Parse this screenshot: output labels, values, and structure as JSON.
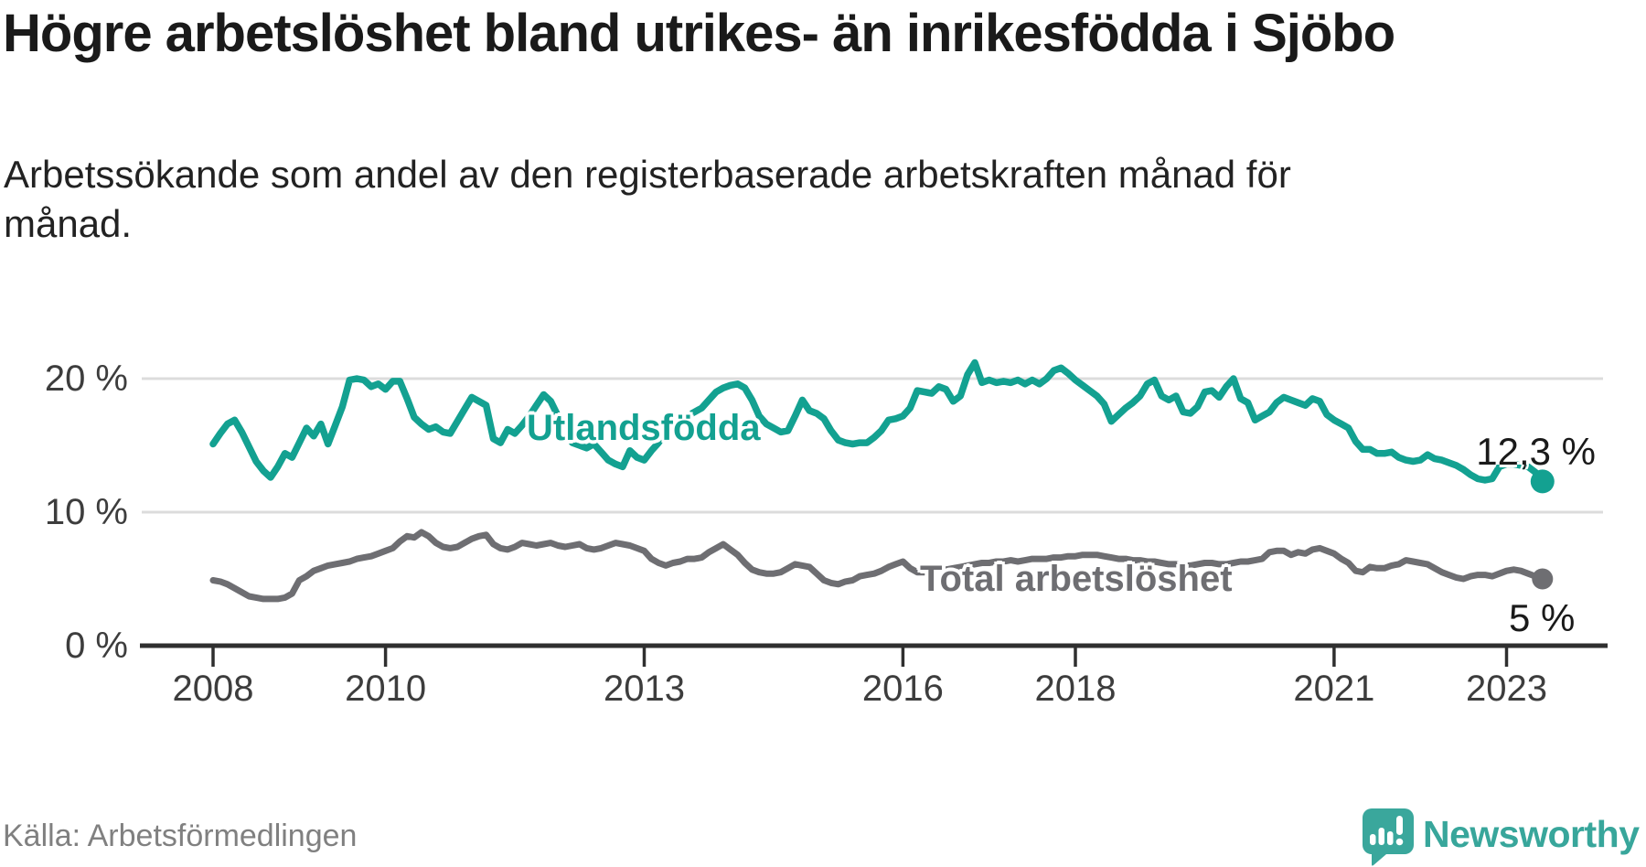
{
  "header": {
    "title": "Högre arbetslöshet bland utrikes- än inrikesfödda i Sjöbo",
    "subtitle": "Arbetssökande som andel av den registerbaserade arbetskraften månad för månad."
  },
  "chart_data": {
    "type": "line",
    "title": "Högre arbetslöshet bland utrikes- än inrikesfödda i Sjöbo",
    "subtitle": "Arbetssökande som andel av den registerbaserade arbetskraften månad för månad.",
    "x_start": "2008-01",
    "x_interval": "month",
    "x_tick_labels": [
      "2008",
      "2010",
      "2013",
      "2016",
      "2018",
      "2021",
      "2023"
    ],
    "y_axis": {
      "ticks": [
        20,
        10,
        0
      ],
      "tick_labels": [
        "20 %",
        "10 %",
        "0 %"
      ],
      "range": [
        0,
        22
      ],
      "unit": "%"
    },
    "grid": "horizontal",
    "legend_position": "inline-labels",
    "series": [
      {
        "name": "Utlandsfödda",
        "color": "#13a191",
        "end_label": "12,3 %",
        "end_value": 12.3,
        "values": [
          15.1,
          15.9,
          16.6,
          16.9,
          16.0,
          14.9,
          13.8,
          13.1,
          12.6,
          13.4,
          14.4,
          14.1,
          15.2,
          16.3,
          15.7,
          16.6,
          15.1,
          16.5,
          17.9,
          19.9,
          20.0,
          19.9,
          19.4,
          19.6,
          19.2,
          19.8,
          19.8,
          18.5,
          17.1,
          16.6,
          16.2,
          16.4,
          16.0,
          15.9,
          16.8,
          17.7,
          18.6,
          18.3,
          18.0,
          15.5,
          15.2,
          16.2,
          15.9,
          16.5,
          17.2,
          18.0,
          18.8,
          18.3,
          17.2,
          16.0,
          15.2,
          15.0,
          14.8,
          15.1,
          14.5,
          13.9,
          13.6,
          13.4,
          14.6,
          14.1,
          13.9,
          14.6,
          15.2,
          16.1,
          16.4,
          17.0,
          17.2,
          17.5,
          17.8,
          18.4,
          19.0,
          19.3,
          19.5,
          19.6,
          19.3,
          18.4,
          17.2,
          16.6,
          16.3,
          16.0,
          16.1,
          17.2,
          18.4,
          17.6,
          17.4,
          17.0,
          16.1,
          15.4,
          15.2,
          15.1,
          15.2,
          15.2,
          15.6,
          16.1,
          16.9,
          17.0,
          17.2,
          17.8,
          19.1,
          19.0,
          18.9,
          19.4,
          19.2,
          18.3,
          18.7,
          20.3,
          21.2,
          19.7,
          19.9,
          19.7,
          19.8,
          19.7,
          19.9,
          19.6,
          19.9,
          19.6,
          20.0,
          20.6,
          20.8,
          20.4,
          19.9,
          19.5,
          19.1,
          18.7,
          18.1,
          16.8,
          17.3,
          17.8,
          18.2,
          18.7,
          19.6,
          19.9,
          18.7,
          18.4,
          18.7,
          17.5,
          17.4,
          17.9,
          19.0,
          19.1,
          18.6,
          19.4,
          20.0,
          18.5,
          18.2,
          16.9,
          17.2,
          17.5,
          18.2,
          18.6,
          18.4,
          18.2,
          18.0,
          18.5,
          18.3,
          17.3,
          16.9,
          16.6,
          16.3,
          15.3,
          14.7,
          14.7,
          14.4,
          14.4,
          14.5,
          14.1,
          13.9,
          13.8,
          13.9,
          14.3,
          14.0,
          13.9,
          13.7,
          13.5,
          13.2,
          12.8,
          12.5,
          12.4,
          12.5,
          13.4,
          13.6,
          13.6,
          13.5,
          13.4,
          13.0,
          12.3
        ]
      },
      {
        "name": "Total arbetslöshet",
        "color": "#6e6e72",
        "end_label": "5 %",
        "end_value": 5.0,
        "values": [
          4.9,
          4.8,
          4.6,
          4.3,
          4.0,
          3.7,
          3.6,
          3.5,
          3.5,
          3.5,
          3.6,
          3.9,
          4.9,
          5.2,
          5.6,
          5.8,
          6.0,
          6.1,
          6.2,
          6.3,
          6.5,
          6.6,
          6.7,
          6.9,
          7.1,
          7.3,
          7.8,
          8.2,
          8.1,
          8.5,
          8.2,
          7.7,
          7.4,
          7.3,
          7.4,
          7.7,
          8.0,
          8.2,
          8.3,
          7.6,
          7.3,
          7.2,
          7.4,
          7.7,
          7.6,
          7.5,
          7.6,
          7.7,
          7.5,
          7.4,
          7.5,
          7.6,
          7.3,
          7.2,
          7.3,
          7.5,
          7.7,
          7.6,
          7.5,
          7.3,
          7.1,
          6.5,
          6.2,
          6.0,
          6.2,
          6.3,
          6.5,
          6.5,
          6.6,
          7.0,
          7.3,
          7.6,
          7.2,
          6.8,
          6.2,
          5.7,
          5.5,
          5.4,
          5.4,
          5.5,
          5.8,
          6.1,
          6.0,
          5.9,
          5.4,
          4.9,
          4.7,
          4.6,
          4.8,
          4.9,
          5.2,
          5.3,
          5.4,
          5.6,
          5.9,
          6.1,
          6.3,
          5.8,
          5.5,
          5.5,
          5.6,
          5.7,
          5.7,
          5.8,
          5.9,
          6.0,
          6.1,
          6.2,
          6.2,
          6.3,
          6.3,
          6.4,
          6.3,
          6.4,
          6.5,
          6.5,
          6.5,
          6.6,
          6.6,
          6.7,
          6.7,
          6.8,
          6.8,
          6.8,
          6.7,
          6.6,
          6.5,
          6.5,
          6.4,
          6.4,
          6.3,
          6.3,
          6.2,
          6.1,
          6.1,
          6.0,
          6.0,
          6.1,
          6.2,
          6.2,
          6.1,
          6.1,
          6.2,
          6.3,
          6.3,
          6.4,
          6.5,
          7.0,
          7.1,
          7.1,
          6.8,
          7.0,
          6.9,
          7.2,
          7.3,
          7.1,
          6.9,
          6.5,
          6.2,
          5.6,
          5.5,
          5.9,
          5.8,
          5.8,
          6.0,
          6.1,
          6.4,
          6.3,
          6.2,
          6.1,
          5.8,
          5.5,
          5.3,
          5.1,
          5.0,
          5.2,
          5.3,
          5.3,
          5.2,
          5.4,
          5.6,
          5.7,
          5.6,
          5.4,
          5.2,
          5.0
        ]
      }
    ],
    "colors": {
      "accent_teal": "#13a191",
      "neutral_gray": "#6e6e72",
      "gridline": "#dcdcdc",
      "axis": "#2f2f2f"
    }
  },
  "footer": {
    "source": "Källa: Arbetsförmedlingen",
    "brand": "Newsworthy"
  }
}
